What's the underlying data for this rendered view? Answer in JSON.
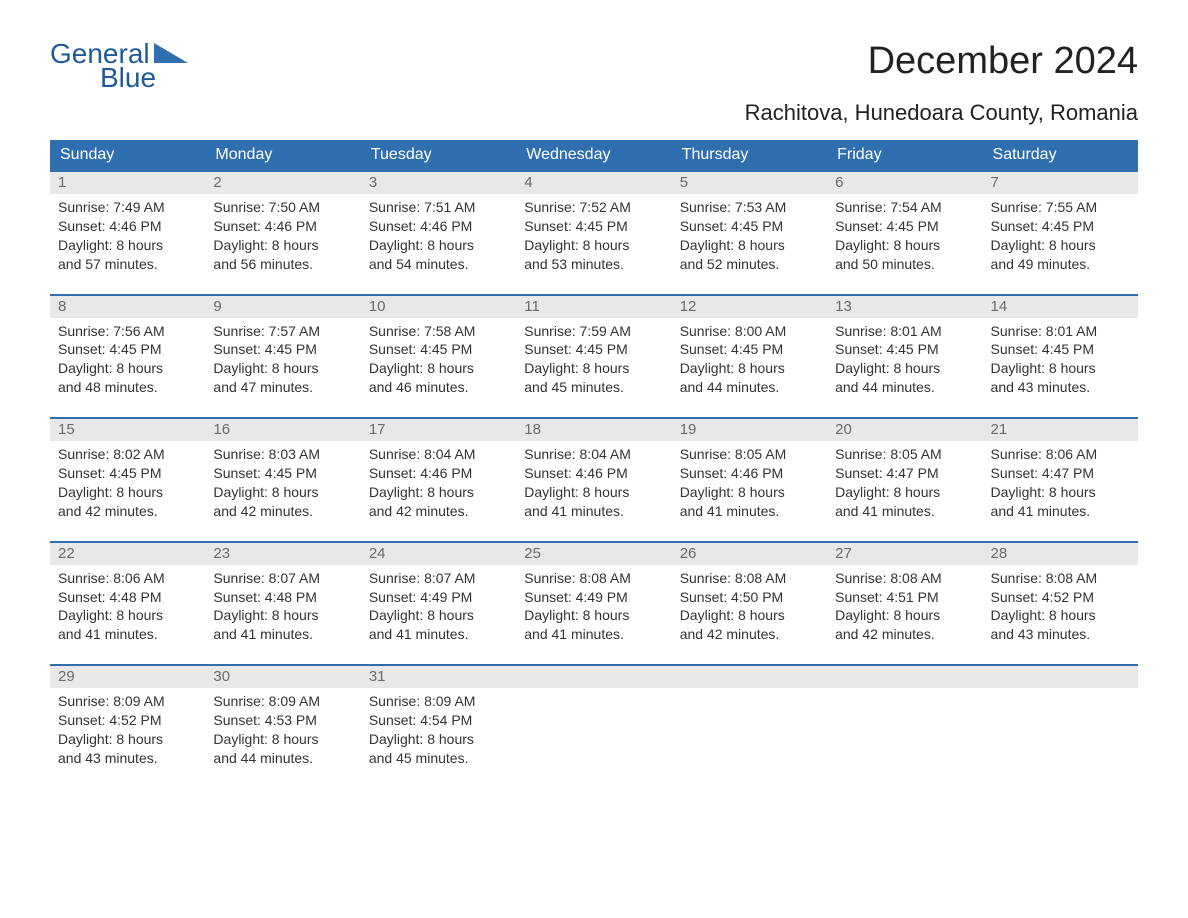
{
  "logo": {
    "text_general": "General",
    "text_blue": "Blue",
    "brand_color": "#1f5b99",
    "triangle_color": "#2f6fb0"
  },
  "title": {
    "month_year": "December 2024",
    "location": "Rachitova, Hunedoara County, Romania",
    "title_fontsize": 38,
    "location_fontsize": 22,
    "text_color": "#222222"
  },
  "styling": {
    "header_bg": "#2f6fb0",
    "header_text_color": "#ffffff",
    "daynum_bg": "#e8e8e8",
    "daynum_color": "#6a6a6a",
    "body_text_color": "#333333",
    "row_border_color": "#2f6fb0",
    "page_bg": "#ffffff",
    "body_fontsize": 14,
    "weekday_fontsize": 16
  },
  "weekdays": [
    "Sunday",
    "Monday",
    "Tuesday",
    "Wednesday",
    "Thursday",
    "Friday",
    "Saturday"
  ],
  "weeks": [
    [
      {
        "day": "1",
        "sunrise": "Sunrise: 7:49 AM",
        "sunset": "Sunset: 4:46 PM",
        "dl1": "Daylight: 8 hours",
        "dl2": "and 57 minutes."
      },
      {
        "day": "2",
        "sunrise": "Sunrise: 7:50 AM",
        "sunset": "Sunset: 4:46 PM",
        "dl1": "Daylight: 8 hours",
        "dl2": "and 56 minutes."
      },
      {
        "day": "3",
        "sunrise": "Sunrise: 7:51 AM",
        "sunset": "Sunset: 4:46 PM",
        "dl1": "Daylight: 8 hours",
        "dl2": "and 54 minutes."
      },
      {
        "day": "4",
        "sunrise": "Sunrise: 7:52 AM",
        "sunset": "Sunset: 4:45 PM",
        "dl1": "Daylight: 8 hours",
        "dl2": "and 53 minutes."
      },
      {
        "day": "5",
        "sunrise": "Sunrise: 7:53 AM",
        "sunset": "Sunset: 4:45 PM",
        "dl1": "Daylight: 8 hours",
        "dl2": "and 52 minutes."
      },
      {
        "day": "6",
        "sunrise": "Sunrise: 7:54 AM",
        "sunset": "Sunset: 4:45 PM",
        "dl1": "Daylight: 8 hours",
        "dl2": "and 50 minutes."
      },
      {
        "day": "7",
        "sunrise": "Sunrise: 7:55 AM",
        "sunset": "Sunset: 4:45 PM",
        "dl1": "Daylight: 8 hours",
        "dl2": "and 49 minutes."
      }
    ],
    [
      {
        "day": "8",
        "sunrise": "Sunrise: 7:56 AM",
        "sunset": "Sunset: 4:45 PM",
        "dl1": "Daylight: 8 hours",
        "dl2": "and 48 minutes."
      },
      {
        "day": "9",
        "sunrise": "Sunrise: 7:57 AM",
        "sunset": "Sunset: 4:45 PM",
        "dl1": "Daylight: 8 hours",
        "dl2": "and 47 minutes."
      },
      {
        "day": "10",
        "sunrise": "Sunrise: 7:58 AM",
        "sunset": "Sunset: 4:45 PM",
        "dl1": "Daylight: 8 hours",
        "dl2": "and 46 minutes."
      },
      {
        "day": "11",
        "sunrise": "Sunrise: 7:59 AM",
        "sunset": "Sunset: 4:45 PM",
        "dl1": "Daylight: 8 hours",
        "dl2": "and 45 minutes."
      },
      {
        "day": "12",
        "sunrise": "Sunrise: 8:00 AM",
        "sunset": "Sunset: 4:45 PM",
        "dl1": "Daylight: 8 hours",
        "dl2": "and 44 minutes."
      },
      {
        "day": "13",
        "sunrise": "Sunrise: 8:01 AM",
        "sunset": "Sunset: 4:45 PM",
        "dl1": "Daylight: 8 hours",
        "dl2": "and 44 minutes."
      },
      {
        "day": "14",
        "sunrise": "Sunrise: 8:01 AM",
        "sunset": "Sunset: 4:45 PM",
        "dl1": "Daylight: 8 hours",
        "dl2": "and 43 minutes."
      }
    ],
    [
      {
        "day": "15",
        "sunrise": "Sunrise: 8:02 AM",
        "sunset": "Sunset: 4:45 PM",
        "dl1": "Daylight: 8 hours",
        "dl2": "and 42 minutes."
      },
      {
        "day": "16",
        "sunrise": "Sunrise: 8:03 AM",
        "sunset": "Sunset: 4:45 PM",
        "dl1": "Daylight: 8 hours",
        "dl2": "and 42 minutes."
      },
      {
        "day": "17",
        "sunrise": "Sunrise: 8:04 AM",
        "sunset": "Sunset: 4:46 PM",
        "dl1": "Daylight: 8 hours",
        "dl2": "and 42 minutes."
      },
      {
        "day": "18",
        "sunrise": "Sunrise: 8:04 AM",
        "sunset": "Sunset: 4:46 PM",
        "dl1": "Daylight: 8 hours",
        "dl2": "and 41 minutes."
      },
      {
        "day": "19",
        "sunrise": "Sunrise: 8:05 AM",
        "sunset": "Sunset: 4:46 PM",
        "dl1": "Daylight: 8 hours",
        "dl2": "and 41 minutes."
      },
      {
        "day": "20",
        "sunrise": "Sunrise: 8:05 AM",
        "sunset": "Sunset: 4:47 PM",
        "dl1": "Daylight: 8 hours",
        "dl2": "and 41 minutes."
      },
      {
        "day": "21",
        "sunrise": "Sunrise: 8:06 AM",
        "sunset": "Sunset: 4:47 PM",
        "dl1": "Daylight: 8 hours",
        "dl2": "and 41 minutes."
      }
    ],
    [
      {
        "day": "22",
        "sunrise": "Sunrise: 8:06 AM",
        "sunset": "Sunset: 4:48 PM",
        "dl1": "Daylight: 8 hours",
        "dl2": "and 41 minutes."
      },
      {
        "day": "23",
        "sunrise": "Sunrise: 8:07 AM",
        "sunset": "Sunset: 4:48 PM",
        "dl1": "Daylight: 8 hours",
        "dl2": "and 41 minutes."
      },
      {
        "day": "24",
        "sunrise": "Sunrise: 8:07 AM",
        "sunset": "Sunset: 4:49 PM",
        "dl1": "Daylight: 8 hours",
        "dl2": "and 41 minutes."
      },
      {
        "day": "25",
        "sunrise": "Sunrise: 8:08 AM",
        "sunset": "Sunset: 4:49 PM",
        "dl1": "Daylight: 8 hours",
        "dl2": "and 41 minutes."
      },
      {
        "day": "26",
        "sunrise": "Sunrise: 8:08 AM",
        "sunset": "Sunset: 4:50 PM",
        "dl1": "Daylight: 8 hours",
        "dl2": "and 42 minutes."
      },
      {
        "day": "27",
        "sunrise": "Sunrise: 8:08 AM",
        "sunset": "Sunset: 4:51 PM",
        "dl1": "Daylight: 8 hours",
        "dl2": "and 42 minutes."
      },
      {
        "day": "28",
        "sunrise": "Sunrise: 8:08 AM",
        "sunset": "Sunset: 4:52 PM",
        "dl1": "Daylight: 8 hours",
        "dl2": "and 43 minutes."
      }
    ],
    [
      {
        "day": "29",
        "sunrise": "Sunrise: 8:09 AM",
        "sunset": "Sunset: 4:52 PM",
        "dl1": "Daylight: 8 hours",
        "dl2": "and 43 minutes."
      },
      {
        "day": "30",
        "sunrise": "Sunrise: 8:09 AM",
        "sunset": "Sunset: 4:53 PM",
        "dl1": "Daylight: 8 hours",
        "dl2": "and 44 minutes."
      },
      {
        "day": "31",
        "sunrise": "Sunrise: 8:09 AM",
        "sunset": "Sunset: 4:54 PM",
        "dl1": "Daylight: 8 hours",
        "dl2": "and 45 minutes."
      },
      {
        "empty": true
      },
      {
        "empty": true
      },
      {
        "empty": true
      },
      {
        "empty": true
      }
    ]
  ]
}
